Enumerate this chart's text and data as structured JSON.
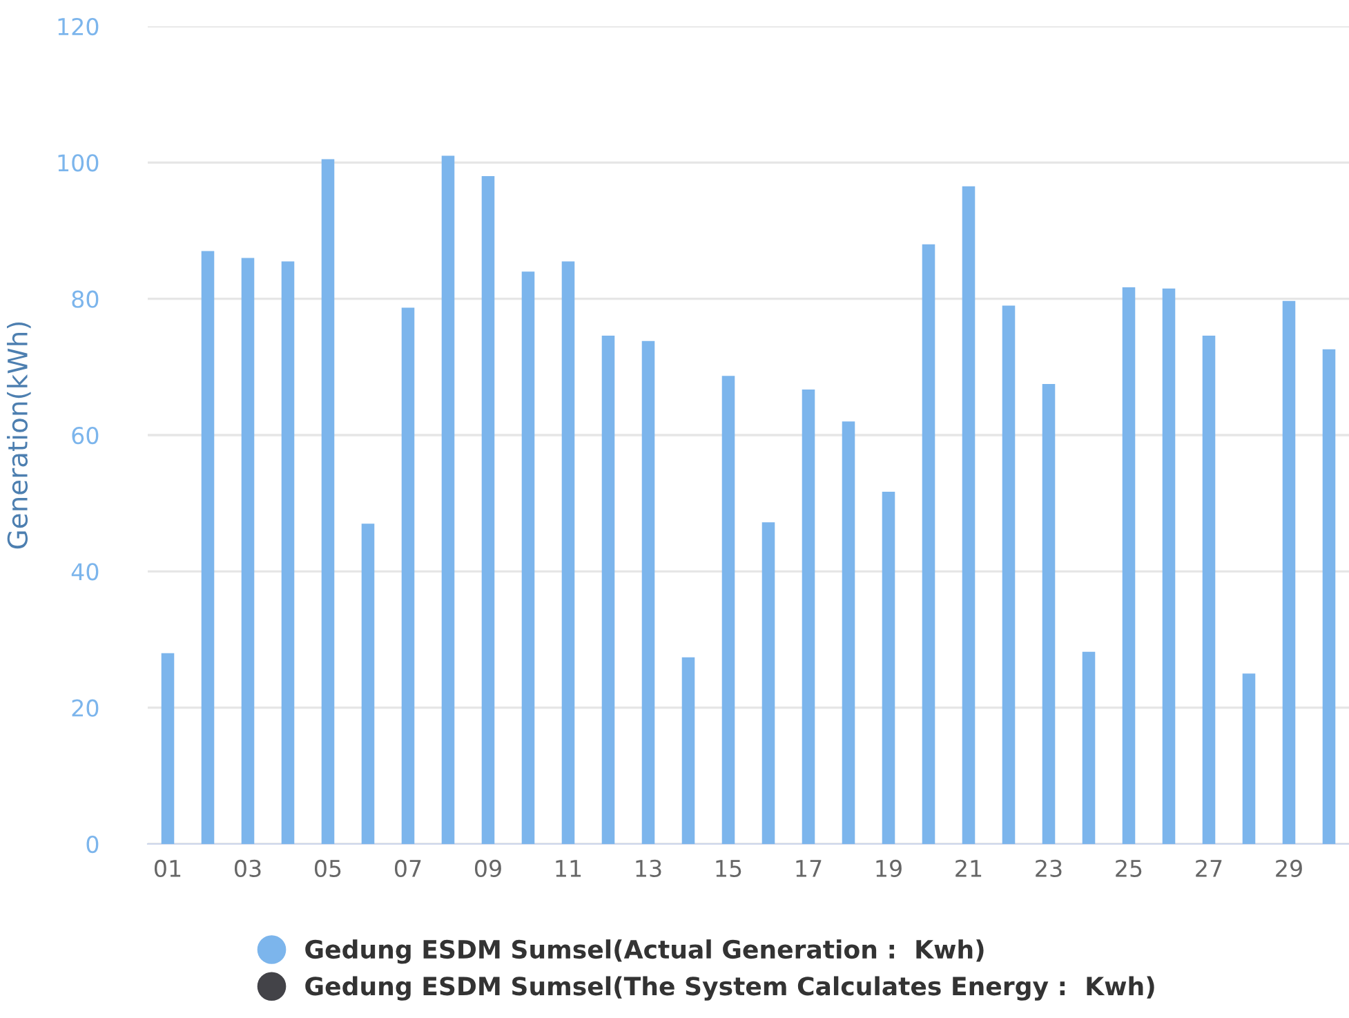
{
  "chart_data": {
    "type": "bar",
    "ylabel": "Generation(kWh)",
    "categories": [
      "01",
      null,
      "03",
      null,
      "05",
      null,
      "07",
      null,
      "09",
      null,
      "11",
      null,
      "13",
      null,
      "15",
      null,
      "17",
      null,
      "19",
      null,
      "21",
      null,
      "23",
      null,
      "25",
      null,
      "27",
      null,
      "29",
      null
    ],
    "series": [
      {
        "name": "Gedung ESDM Sumsel(Actual Generation :  Kwh)",
        "color": "#7cb5ec",
        "values": [
          28,
          87,
          86,
          85.5,
          100.5,
          47,
          78.7,
          101,
          98,
          84,
          85.5,
          74.6,
          73.8,
          27.4,
          68.7,
          47.2,
          66.7,
          62,
          51.7,
          88,
          96.5,
          79,
          67.5,
          28.2,
          81.7,
          81.5,
          74.6,
          25,
          79.7,
          72.6
        ]
      },
      {
        "name": "Gedung ESDM Sumsel(The System Calculates Energy :  Kwh)",
        "color": "#434348",
        "values": [
          null,
          null,
          null,
          null,
          null,
          null,
          null,
          null,
          null,
          null,
          null,
          null,
          null,
          null,
          null,
          null,
          null,
          null,
          null,
          null,
          null,
          null,
          null,
          null,
          null,
          null,
          null,
          null,
          null,
          null
        ]
      }
    ],
    "ylim": [
      0,
      120
    ],
    "yticks": [
      0,
      20,
      40,
      60,
      80,
      100,
      120
    ],
    "grid": "y",
    "legend": "bottom"
  }
}
